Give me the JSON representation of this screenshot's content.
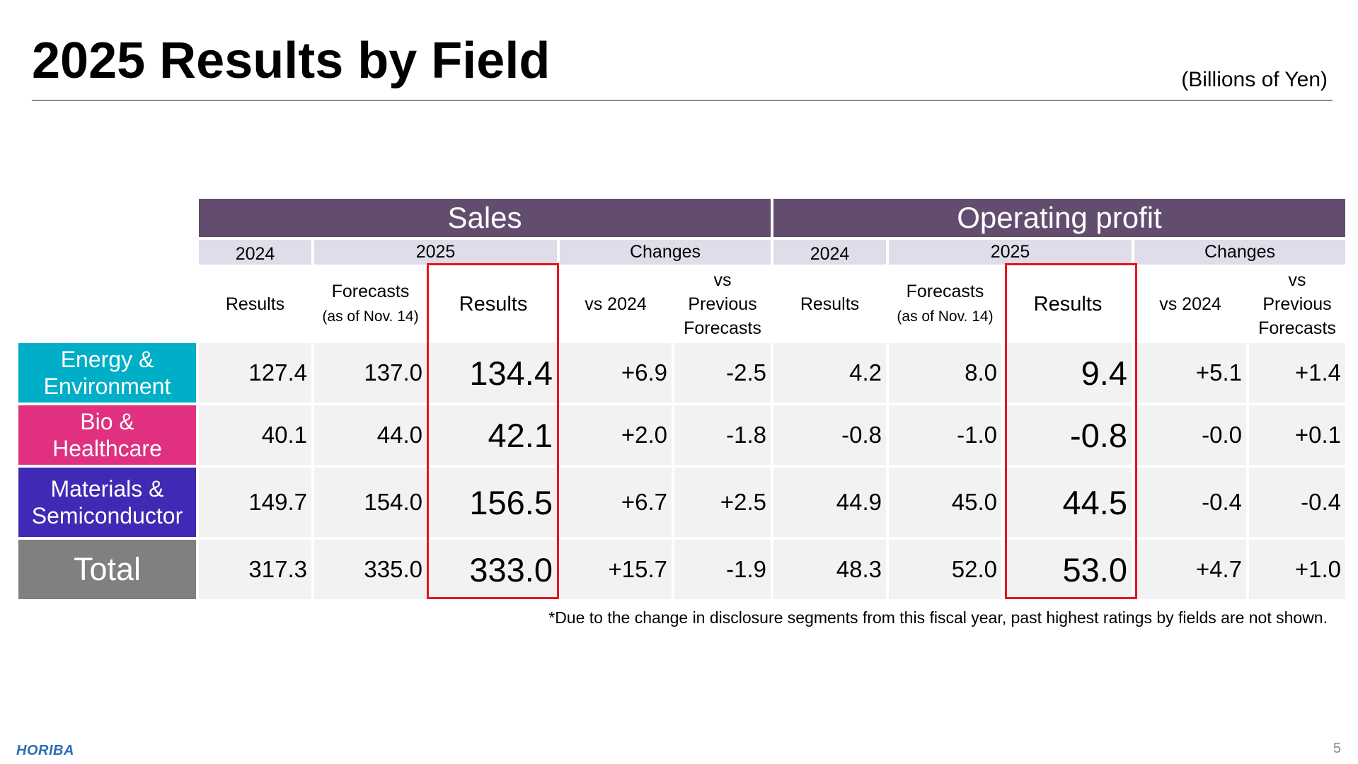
{
  "title": "2025 Results by Field",
  "unit": "(Billions of Yen)",
  "groups": {
    "sales": "Sales",
    "op": "Operating profit"
  },
  "years": {
    "y2024": "2024",
    "y2025": "2025",
    "changes": "Changes"
  },
  "subheaders": {
    "results": "Results",
    "forecasts": "Forecasts",
    "forecasts_note": "(as of Nov. 14)",
    "vs2024": "vs 2024",
    "vs_prev_1": "vs",
    "vs_prev_2": "Previous",
    "vs_prev_3": "Forecasts"
  },
  "colors": {
    "header": "#634d6f",
    "subheader": "#e0dcea",
    "cell": "#f2f2f2",
    "highlight": "#e8141d",
    "energy": "#00aec7",
    "bio": "#e0307f",
    "materials": "#4029b4",
    "total": "#808080"
  },
  "rows": [
    {
      "label1": "Energy &",
      "label2": "Environment",
      "sales": [
        "127.4",
        "137.0",
        "134.4",
        "+6.9",
        "-2.5"
      ],
      "op": [
        "4.2",
        "8.0",
        "9.4",
        "+5.1",
        "+1.4"
      ]
    },
    {
      "label1": "Bio &",
      "label2": "Healthcare",
      "sales": [
        "40.1",
        "44.0",
        "42.1",
        "+2.0",
        "-1.8"
      ],
      "op": [
        "-0.8",
        "-1.0",
        "-0.8",
        "-0.0",
        "+0.1"
      ]
    },
    {
      "label1": "Materials &",
      "label2": "Semiconductor",
      "sales": [
        "149.7",
        "154.0",
        "156.5",
        "+6.7",
        "+2.5"
      ],
      "op": [
        "44.9",
        "45.0",
        "44.5",
        "-0.4",
        "-0.4"
      ]
    },
    {
      "label1": "Total",
      "sales": [
        "317.3",
        "335.0",
        "333.0",
        "+15.7",
        "-1.9"
      ],
      "op": [
        "48.3",
        "52.0",
        "53.0",
        "+4.7",
        "+1.0"
      ]
    }
  ],
  "note": "*Due to the change in disclosure segments from this fiscal year, past highest ratings by fields are not shown.",
  "logo": "HORIBA",
  "page_number": "5"
}
